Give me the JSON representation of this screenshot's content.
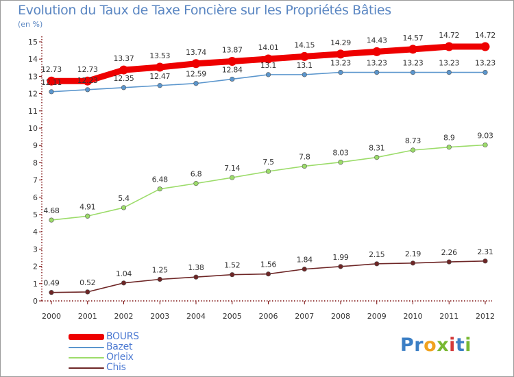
{
  "title": "Evolution du Taux de Taxe Foncière sur les Propriétés Bâties",
  "unit_label": "(en %)",
  "logo": {
    "letters": [
      {
        "ch": "P",
        "color": "#3c7fc5"
      },
      {
        "ch": "r",
        "color": "#3c7fc5"
      },
      {
        "ch": "o",
        "color": "#f0a21e"
      },
      {
        "ch": "x",
        "color": "#78b832"
      },
      {
        "ch": "i",
        "color": "#d43a3a"
      },
      {
        "ch": "t",
        "color": "#3c7fc5"
      },
      {
        "ch": "i",
        "color": "#78b832"
      }
    ]
  },
  "chart_data": {
    "type": "line",
    "title": "Evolution du Taux de Taxe Foncière sur les Propriétés Bâties",
    "ylabel": "(en %)",
    "xlabel": "",
    "x": [
      "2000",
      "2001",
      "2002",
      "2003",
      "2004",
      "2005",
      "2006",
      "2007",
      "2008",
      "2009",
      "2010",
      "2011",
      "2012"
    ],
    "ylim": [
      0,
      15
    ],
    "yticks": [
      "0",
      "1",
      "2",
      "3",
      "4",
      "5",
      "6",
      "7",
      "8",
      "9",
      "10",
      "11",
      "12",
      "13",
      "14",
      "15"
    ],
    "grid": false,
    "legend_position": "bottom-left",
    "series": [
      {
        "name": "BOURS",
        "color": "#ee0000",
        "style": "thick",
        "values": [
          12.73,
          12.73,
          13.37,
          13.53,
          13.74,
          13.87,
          14.01,
          14.15,
          14.29,
          14.43,
          14.57,
          14.72,
          14.72
        ],
        "labels": [
          "12.73",
          "12.73",
          "13.37",
          "13.53",
          "13.74",
          "13.87",
          "14.01",
          "14.15",
          "14.29",
          "14.43",
          "14.57",
          "14.72",
          "14.72"
        ]
      },
      {
        "name": "Bazet",
        "color": "#5b96cd",
        "style": "thin",
        "values": [
          12.11,
          12.23,
          12.35,
          12.47,
          12.59,
          12.84,
          13.1,
          13.1,
          13.23,
          13.23,
          13.23,
          13.23,
          13.23
        ],
        "labels": [
          "12.11",
          "12.23",
          "12.35",
          "12.47",
          "12.59",
          "12.84",
          "13.1",
          "13.1",
          "13.23",
          "13.23",
          "13.23",
          "13.23",
          "13.23"
        ]
      },
      {
        "name": "Orleix",
        "color": "#9cdc6a",
        "style": "thin",
        "values": [
          4.68,
          4.91,
          5.4,
          6.48,
          6.8,
          7.14,
          7.5,
          7.8,
          8.03,
          8.31,
          8.73,
          8.9,
          9.03
        ],
        "labels": [
          "4.68",
          "4.91",
          "5.4",
          "6.48",
          "6.8",
          "7.14",
          "7.5",
          "7.8",
          "8.03",
          "8.31",
          "8.73",
          "8.9",
          "9.03"
        ]
      },
      {
        "name": "Chis",
        "color": "#6e2626",
        "style": "thin",
        "values": [
          0.49,
          0.52,
          1.04,
          1.25,
          1.38,
          1.52,
          1.56,
          1.84,
          1.99,
          2.15,
          2.19,
          2.26,
          2.31
        ],
        "labels": [
          "0.49",
          "0.52",
          "1.04",
          "1.25",
          "1.38",
          "1.52",
          "1.56",
          "1.84",
          "1.99",
          "2.15",
          "2.19",
          "2.26",
          "2.31"
        ]
      }
    ]
  }
}
